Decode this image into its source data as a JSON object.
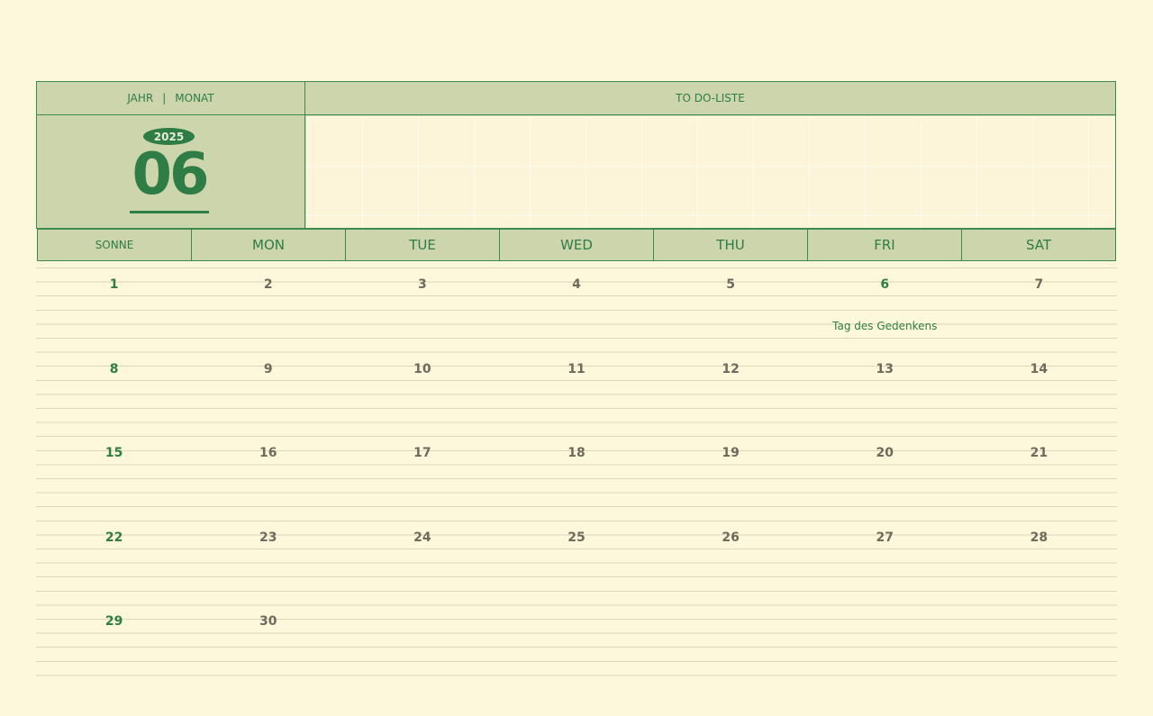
{
  "header": {
    "year_label": "JAHR",
    "separator": "|",
    "month_label": "MONAT",
    "todo_label": "TO DO-LISTE",
    "year": "2025",
    "month": "06"
  },
  "weekdays": [
    "SONNE",
    "MON",
    "TUE",
    "WED",
    "THU",
    "FRI",
    "SAT"
  ],
  "colors": {
    "accent": "#2e7d46",
    "header_bg": "#cdd5ac",
    "page_bg": "#fdf8dc",
    "day_number": "#6f6a5c"
  },
  "weeks": [
    [
      {
        "d": "1"
      },
      {
        "d": "2"
      },
      {
        "d": "3"
      },
      {
        "d": "4"
      },
      {
        "d": "5"
      },
      {
        "d": "6",
        "event": "Tag des Gedenkens"
      },
      {
        "d": "7"
      }
    ],
    [
      {
        "d": "8"
      },
      {
        "d": "9"
      },
      {
        "d": "10"
      },
      {
        "d": "11"
      },
      {
        "d": "12"
      },
      {
        "d": "13"
      },
      {
        "d": "14"
      }
    ],
    [
      {
        "d": "15"
      },
      {
        "d": "16"
      },
      {
        "d": "17"
      },
      {
        "d": "18"
      },
      {
        "d": "19"
      },
      {
        "d": "20"
      },
      {
        "d": "21"
      }
    ],
    [
      {
        "d": "22"
      },
      {
        "d": "23"
      },
      {
        "d": "24"
      },
      {
        "d": "25"
      },
      {
        "d": "26"
      },
      {
        "d": "27"
      },
      {
        "d": "28"
      }
    ],
    [
      {
        "d": "29"
      },
      {
        "d": "30"
      },
      {},
      {},
      {},
      {},
      {}
    ]
  ]
}
